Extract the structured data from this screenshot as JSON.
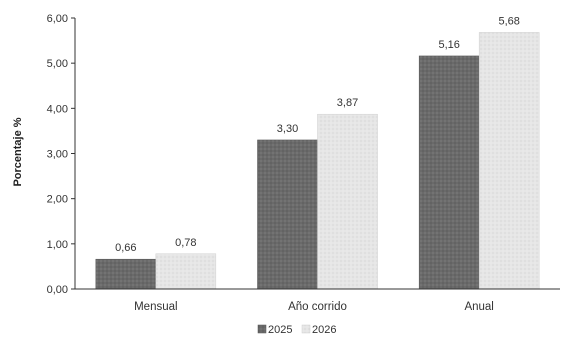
{
  "chart_data": {
    "type": "bar",
    "title": "",
    "xlabel": "",
    "ylabel": "Porcentaje %",
    "categories": [
      "Mensual",
      "Año corrido",
      "Anual"
    ],
    "series": [
      {
        "name": "2025",
        "values": [
          0.66,
          3.3,
          5.16
        ],
        "value_labels": [
          "0,66",
          "3,30",
          "5,16"
        ],
        "color": "#6e6e6e"
      },
      {
        "name": "2026",
        "values": [
          0.78,
          3.87,
          5.68
        ],
        "value_labels": [
          "0,78",
          "3,87",
          "5,68"
        ],
        "color": "#e4e4e4"
      }
    ],
    "ylim": [
      0,
      6
    ],
    "yticks": [
      0,
      1,
      2,
      3,
      4,
      5,
      6
    ],
    "ytick_labels": [
      "0,00",
      "1,00",
      "2,00",
      "3,00",
      "4,00",
      "5,00",
      "6,00"
    ],
    "grid": false,
    "legend_position": "bottom-center"
  }
}
